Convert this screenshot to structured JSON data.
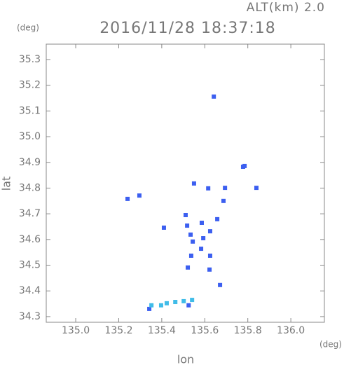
{
  "chart_data": {
    "type": "scatter",
    "title": "2016/11/28 18:37:18",
    "subtitle": "ALT(km) 2.0",
    "x_label": "lon",
    "y_label": "lat",
    "x_unit": "(deg)",
    "y_unit": "(deg)",
    "xlim": [
      134.863,
      136.156
    ],
    "ylim": [
      34.278,
      35.36
    ],
    "xticks": [
      {
        "value": 135.0,
        "label": "135.0"
      },
      135.2,
      135.4,
      135.6,
      135.8,
      {
        "value": 136.0,
        "label": "136.0"
      }
    ],
    "yticks": [
      34.3,
      34.4,
      34.5,
      34.6,
      34.7,
      34.8,
      34.9,
      {
        "value": 35.0,
        "label": "35.0"
      },
      35.1,
      35.2,
      35.3
    ],
    "grid": false,
    "series": [
      {
        "color": "#3c5ff0",
        "x": [
          135.642,
          135.778,
          135.785,
          135.84,
          135.616,
          135.694,
          135.55,
          135.241,
          135.296,
          135.687,
          135.511,
          135.41,
          135.518,
          135.586,
          135.658,
          135.625,
          135.544,
          135.583,
          135.537,
          135.521,
          135.625,
          135.622,
          135.671,
          135.534,
          135.593,
          135.342,
          135.525
        ],
        "values": [
          35.156,
          34.883,
          34.886,
          34.801,
          34.799,
          34.801,
          34.818,
          34.758,
          34.771,
          34.75,
          34.695,
          34.646,
          34.654,
          34.665,
          34.679,
          34.632,
          34.592,
          34.564,
          34.537,
          34.491,
          34.537,
          34.483,
          34.423,
          34.619,
          34.605,
          34.33,
          34.344
        ]
      },
      {
        "color": "#40bce8",
        "x": [
          135.352,
          135.397,
          135.423,
          135.463,
          135.502,
          135.541
        ],
        "values": [
          34.344,
          34.344,
          34.352,
          34.357,
          34.36,
          34.365
        ]
      }
    ]
  }
}
